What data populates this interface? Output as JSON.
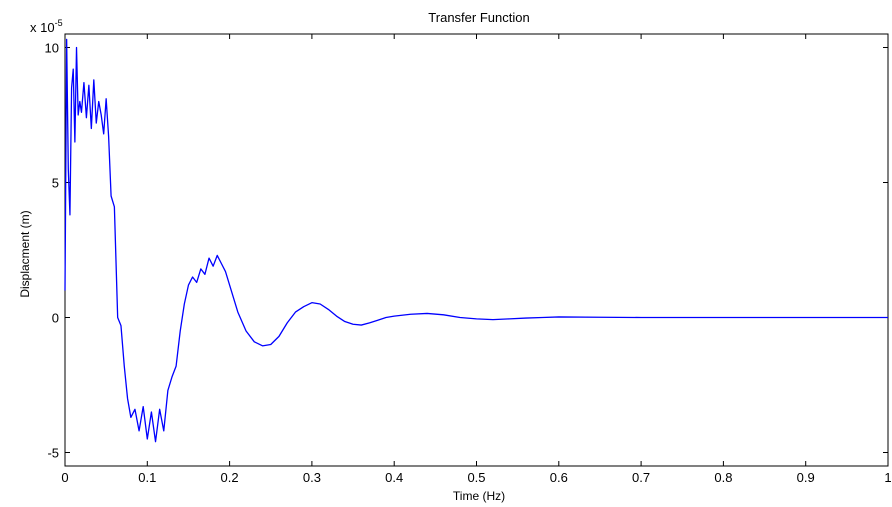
{
  "chart_data": {
    "type": "line",
    "title": "Transfer Function",
    "xlabel": "Time (Hz)",
    "ylabel": "Displacment (m)",
    "y_multiplier_label": {
      "base": "x 10",
      "exponent": "-5"
    },
    "xlim": [
      0,
      1
    ],
    "ylim": [
      -5.5,
      10.5
    ],
    "x_ticks": [
      0,
      0.1,
      0.2,
      0.3,
      0.4,
      0.5,
      0.6,
      0.7,
      0.8,
      0.9,
      1
    ],
    "x_tick_labels": [
      "0",
      "0.1",
      "0.2",
      "0.3",
      "0.4",
      "0.5",
      "0.6",
      "0.7",
      "0.8",
      "0.9",
      "1"
    ],
    "y_ticks": [
      -5,
      0,
      5,
      10
    ],
    "y_tick_labels": [
      "-5",
      "0",
      "5",
      "10"
    ],
    "grid": false,
    "line_color": "#0000ff",
    "series": [
      {
        "x": [
          0,
          0.002,
          0.004,
          0.006,
          0.008,
          0.01,
          0.012,
          0.014,
          0.016,
          0.018,
          0.02,
          0.023,
          0.026,
          0.029,
          0.032,
          0.035,
          0.038,
          0.041,
          0.044,
          0.047,
          0.05,
          0.053,
          0.056,
          0.06,
          0.064,
          0.068,
          0.072,
          0.076,
          0.08,
          0.085,
          0.09,
          0.095,
          0.1,
          0.105,
          0.11,
          0.115,
          0.12,
          0.125,
          0.13,
          0.135,
          0.14,
          0.145,
          0.15,
          0.155,
          0.16,
          0.165,
          0.17,
          0.175,
          0.18,
          0.185,
          0.19,
          0.195,
          0.2,
          0.21,
          0.22,
          0.23,
          0.24,
          0.25,
          0.26,
          0.27,
          0.28,
          0.29,
          0.3,
          0.31,
          0.32,
          0.33,
          0.34,
          0.35,
          0.36,
          0.37,
          0.38,
          0.39,
          0.4,
          0.42,
          0.44,
          0.46,
          0.48,
          0.5,
          0.52,
          0.54,
          0.56,
          0.58,
          0.6,
          0.65,
          0.7,
          0.8,
          0.9,
          1.0
        ],
        "y": [
          1.0,
          10.3,
          5.5,
          3.8,
          8.5,
          9.2,
          6.5,
          10.0,
          7.5,
          8.0,
          7.6,
          8.7,
          7.4,
          8.6,
          7.0,
          8.8,
          7.2,
          8.0,
          7.5,
          6.8,
          8.1,
          6.7,
          4.5,
          4.1,
          0.0,
          -0.3,
          -1.8,
          -3.0,
          -3.7,
          -3.4,
          -4.2,
          -3.3,
          -4.5,
          -3.5,
          -4.6,
          -3.4,
          -4.2,
          -2.7,
          -2.2,
          -1.8,
          -0.5,
          0.5,
          1.2,
          1.5,
          1.3,
          1.8,
          1.6,
          2.2,
          1.9,
          2.3,
          2.0,
          1.7,
          1.2,
          0.2,
          -0.5,
          -0.9,
          -1.05,
          -1.0,
          -0.7,
          -0.2,
          0.2,
          0.4,
          0.55,
          0.5,
          0.3,
          0.05,
          -0.15,
          -0.25,
          -0.28,
          -0.2,
          -0.1,
          0.0,
          0.05,
          0.12,
          0.15,
          0.1,
          0.0,
          -0.05,
          -0.08,
          -0.05,
          -0.02,
          0.0,
          0.02,
          0.01,
          0.0,
          0.0,
          0.0,
          0.0
        ]
      }
    ]
  }
}
